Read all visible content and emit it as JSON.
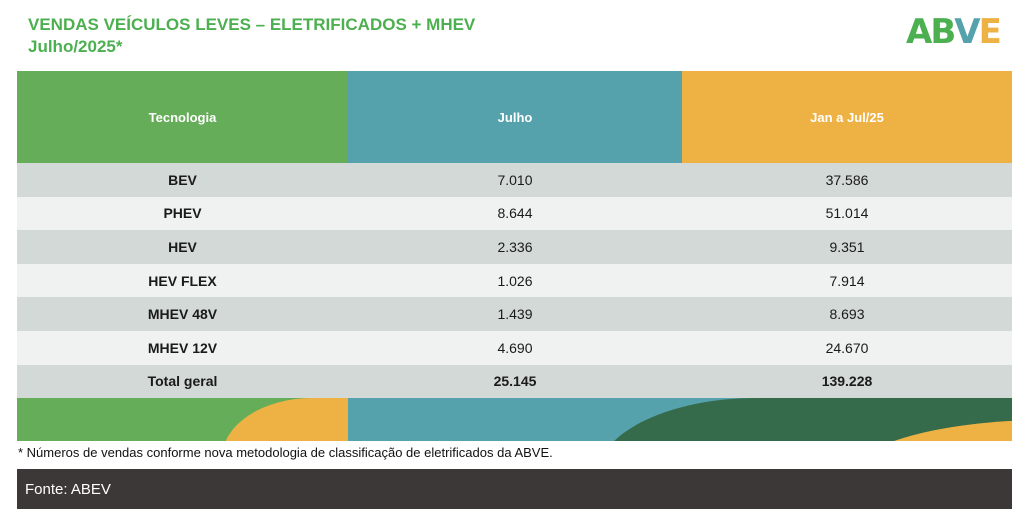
{
  "title": {
    "line1": "VENDAS VEÍCULOS LEVES – ELETRIFICADOS + MHEV",
    "line2": "Julho/2025*"
  },
  "logo": {
    "text": "ABVE",
    "colors": [
      "#4caf50",
      "#55a2ac",
      "#eeb244"
    ]
  },
  "table": {
    "headers": [
      "Tecnologia",
      "Julho",
      "Jan a Jul/25"
    ],
    "rows": [
      [
        "BEV",
        "7.010",
        "37.586"
      ],
      [
        "PHEV",
        "8.644",
        "51.014"
      ],
      [
        "HEV",
        "2.336",
        "9.351"
      ],
      [
        "HEV FLEX",
        "1.026",
        "7.914"
      ],
      [
        "MHEV 48V",
        "1.439",
        "8.693"
      ],
      [
        "MHEV 12V",
        "4.690",
        "24.670"
      ],
      [
        "Total geral",
        "25.145",
        "139.228"
      ]
    ]
  },
  "note": "* Números de vendas conforme nova metodologia de classificação de eletrificados da ABVE.",
  "footer": "Fonte: ABEV",
  "colors": {
    "green": "#65ad58",
    "teal": "#55a2ac",
    "orange": "#eeb244",
    "dark_green": "#356a4b",
    "row_dark": "#d3d9d6",
    "row_light": "#eff2f0"
  }
}
